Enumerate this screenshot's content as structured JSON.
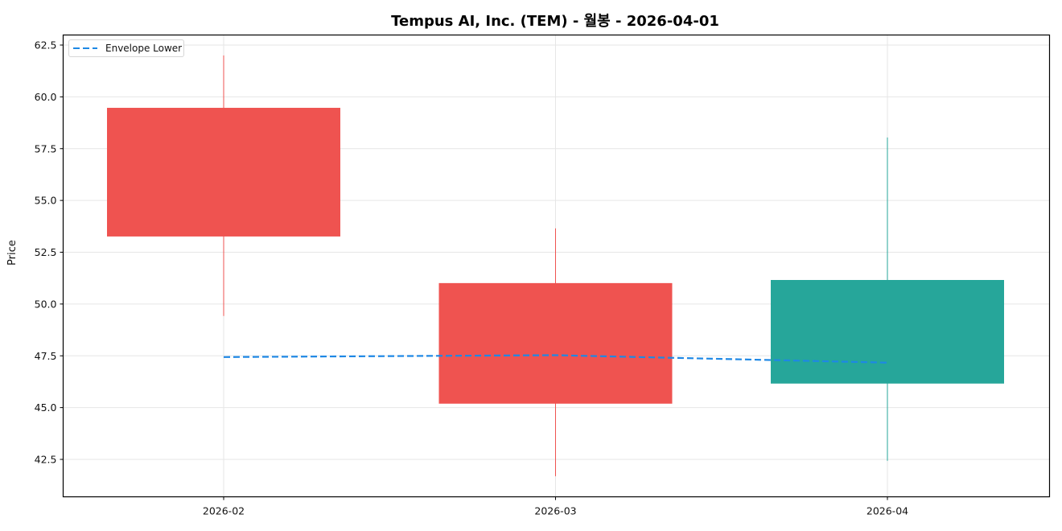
{
  "title": "Tempus AI, Inc. (TEM) - 월봉 - 2026-04-01",
  "ylabel": "Price",
  "legend": {
    "label": "Envelope Lower",
    "color": "#1e88e5"
  },
  "colors": {
    "up": "#26a69a",
    "down": "#ef5350",
    "envelope": "#1e88e5",
    "grid": "#e6e6e6"
  },
  "chart_data": {
    "type": "candlestick",
    "title": "Tempus AI, Inc. (TEM) - 월봉 - 2026-04-01",
    "xlabel": "",
    "ylabel": "Price",
    "ylim": [
      40.7,
      63.0
    ],
    "yticks": [
      42.5,
      45.0,
      47.5,
      50.0,
      52.5,
      55.0,
      57.5,
      60.0,
      62.5
    ],
    "categories": [
      "2026-02",
      "2026-03",
      "2026-04"
    ],
    "grid": true,
    "legend_position": "upper left",
    "series": [
      {
        "name": "OHLC",
        "type": "candlestick",
        "open": [
          59.47,
          51.01,
          46.16
        ],
        "high": [
          62.0,
          53.65,
          58.04
        ],
        "low": [
          49.42,
          41.69,
          42.43
        ],
        "close": [
          53.26,
          45.19,
          51.16
        ]
      },
      {
        "name": "Envelope Lower",
        "type": "line",
        "style": "dashed",
        "values": [
          47.44,
          47.53,
          47.17
        ]
      }
    ]
  }
}
